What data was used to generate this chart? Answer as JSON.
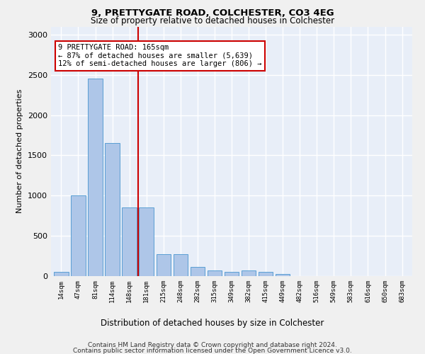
{
  "title1": "9, PRETTYGATE ROAD, COLCHESTER, CO3 4EG",
  "title2": "Size of property relative to detached houses in Colchester",
  "xlabel": "Distribution of detached houses by size in Colchester",
  "ylabel": "Number of detached properties",
  "categories": [
    "14sqm",
    "47sqm",
    "81sqm",
    "114sqm",
    "148sqm",
    "181sqm",
    "215sqm",
    "248sqm",
    "282sqm",
    "315sqm",
    "349sqm",
    "382sqm",
    "415sqm",
    "449sqm",
    "482sqm",
    "516sqm",
    "549sqm",
    "583sqm",
    "616sqm",
    "650sqm",
    "683sqm"
  ],
  "values": [
    50,
    1000,
    2450,
    1650,
    850,
    850,
    270,
    270,
    110,
    70,
    50,
    70,
    50,
    30,
    0,
    0,
    0,
    0,
    0,
    0,
    0
  ],
  "bar_color": "#aec6e8",
  "bar_edge_color": "#5a9fd4",
  "bg_color": "#e8eef8",
  "grid_color": "#ffffff",
  "vline_x": 4.5,
  "vline_color": "#cc0000",
  "annotation_text": "9 PRETTYGATE ROAD: 165sqm\n← 87% of detached houses are smaller (5,639)\n12% of semi-detached houses are larger (806) →",
  "annotation_box_color": "#ffffff",
  "annotation_box_edge": "#cc0000",
  "footer1": "Contains HM Land Registry data © Crown copyright and database right 2024.",
  "footer2": "Contains public sector information licensed under the Open Government Licence v3.0.",
  "ylim": [
    0,
    3100
  ],
  "yticks": [
    0,
    500,
    1000,
    1500,
    2000,
    2500,
    3000
  ]
}
